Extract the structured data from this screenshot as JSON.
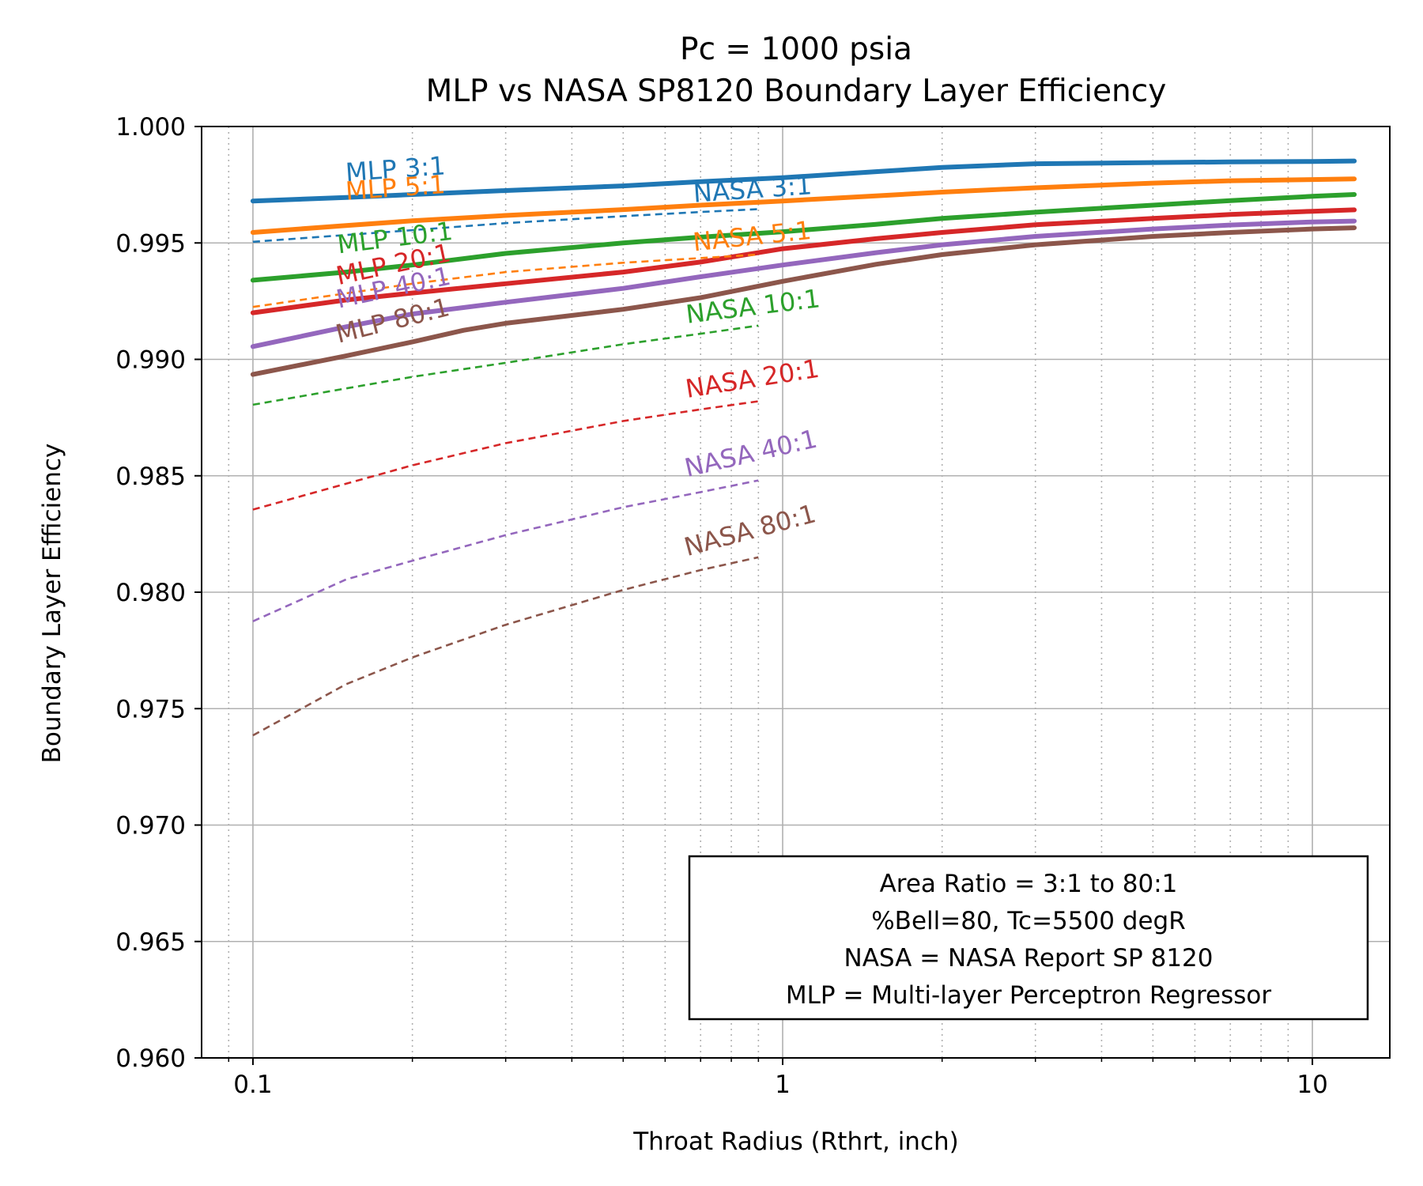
{
  "chart_data": {
    "type": "line",
    "title_lines": [
      "Pc = 1000 psia",
      "MLP vs NASA SP8120 Boundary Layer Efficiency"
    ],
    "xlabel": "Throat Radius (Rthrt, inch)",
    "ylabel": "Boundary Layer Efficiency",
    "x_scale": "log",
    "xlim": [
      0.08,
      14
    ],
    "ylim": [
      0.96,
      1.0
    ],
    "x_ticks": [
      {
        "value": 0.1,
        "label": "0.1"
      },
      {
        "value": 1,
        "label": "1"
      },
      {
        "value": 10,
        "label": "10"
      }
    ],
    "y_ticks": [
      {
        "value": 0.96,
        "label": "0.960"
      },
      {
        "value": 0.965,
        "label": "0.965"
      },
      {
        "value": 0.97,
        "label": "0.970"
      },
      {
        "value": 0.975,
        "label": "0.975"
      },
      {
        "value": 0.98,
        "label": "0.980"
      },
      {
        "value": 0.985,
        "label": "0.985"
      },
      {
        "value": 0.99,
        "label": "0.990"
      },
      {
        "value": 0.995,
        "label": "0.995"
      },
      {
        "value": 1.0,
        "label": "1.000"
      }
    ],
    "grid": {
      "major": true,
      "x_minor": "dotted"
    },
    "series": [
      {
        "name": "MLP 3:1",
        "color": "#1f77b4",
        "style": "solid",
        "label_at": [
          0.15,
          0.99765
        ],
        "label_angle": -4,
        "x": [
          0.1,
          0.15,
          0.2,
          0.3,
          0.5,
          0.7,
          1,
          1.5,
          2,
          3,
          5,
          7,
          10,
          12
        ],
        "y": [
          0.9968,
          0.99695,
          0.99708,
          0.99725,
          0.99745,
          0.99763,
          0.9978,
          0.99806,
          0.99824,
          0.9984,
          0.99845,
          0.99848,
          0.9985,
          0.99852
        ]
      },
      {
        "name": "MLP 5:1",
        "color": "#ff7f0e",
        "style": "solid",
        "label_at": [
          0.15,
          0.99685
        ],
        "label_angle": -4,
        "x": [
          0.1,
          0.15,
          0.2,
          0.3,
          0.5,
          0.7,
          1,
          1.5,
          2,
          3,
          5,
          7,
          10,
          12
        ],
        "y": [
          0.99545,
          0.99575,
          0.99595,
          0.99618,
          0.99643,
          0.99662,
          0.9968,
          0.99702,
          0.99718,
          0.99737,
          0.99757,
          0.99767,
          0.99772,
          0.99775
        ]
      },
      {
        "name": "MLP 10:1",
        "color": "#2ca02c",
        "style": "solid",
        "label_at": [
          0.145,
          0.99455
        ],
        "label_angle": -7,
        "x": [
          0.1,
          0.15,
          0.2,
          0.3,
          0.5,
          0.7,
          1,
          1.5,
          2,
          3,
          5,
          7,
          10,
          12
        ],
        "y": [
          0.9934,
          0.99375,
          0.99405,
          0.99455,
          0.995,
          0.99525,
          0.99548,
          0.9958,
          0.99605,
          0.99632,
          0.99662,
          0.99682,
          0.997,
          0.99708
        ]
      },
      {
        "name": "MLP 20:1",
        "color": "#d62728",
        "style": "solid",
        "label_at": [
          0.145,
          0.9932
        ],
        "label_angle": -12,
        "x": [
          0.1,
          0.15,
          0.2,
          0.3,
          0.5,
          0.7,
          1,
          1.5,
          2,
          3,
          5,
          7,
          10,
          12
        ],
        "y": [
          0.992,
          0.99255,
          0.99285,
          0.99325,
          0.99375,
          0.99418,
          0.99475,
          0.99518,
          0.99545,
          0.99578,
          0.99605,
          0.99622,
          0.99636,
          0.99642
        ]
      },
      {
        "name": "MLP 40:1",
        "color": "#9467bd",
        "style": "solid",
        "label_at": [
          0.145,
          0.9922
        ],
        "label_angle": -12,
        "x": [
          0.1,
          0.15,
          0.2,
          0.3,
          0.5,
          0.7,
          1,
          1.5,
          2,
          3,
          5,
          7,
          10,
          12
        ],
        "y": [
          0.99055,
          0.9914,
          0.99195,
          0.99245,
          0.99305,
          0.99355,
          0.99405,
          0.99458,
          0.99492,
          0.99528,
          0.9956,
          0.99577,
          0.9959,
          0.99594
        ]
      },
      {
        "name": "MLP 80:1",
        "color": "#8c564b",
        "style": "solid",
        "label_at": [
          0.145,
          0.9907
        ],
        "label_angle": -14,
        "x": [
          0.1,
          0.15,
          0.2,
          0.25,
          0.3,
          0.5,
          0.7,
          1,
          1.5,
          2,
          3,
          5,
          7,
          10,
          12
        ],
        "y": [
          0.98935,
          0.99015,
          0.99075,
          0.99125,
          0.99155,
          0.99215,
          0.99265,
          0.99335,
          0.99408,
          0.9945,
          0.99492,
          0.99528,
          0.99545,
          0.9956,
          0.99565
        ]
      },
      {
        "name": "NASA 3:1",
        "color": "#1f77b4",
        "style": "dashed",
        "label_at": [
          0.68,
          0.99675
        ],
        "label_angle": -4,
        "x": [
          0.1,
          0.2,
          0.3,
          0.5,
          0.7,
          0.9
        ],
        "y": [
          0.99505,
          0.99555,
          0.99585,
          0.99615,
          0.99633,
          0.99645
        ]
      },
      {
        "name": "NASA 5:1",
        "color": "#ff7f0e",
        "style": "dashed",
        "label_at": [
          0.68,
          0.99465
        ],
        "label_angle": -6,
        "x": [
          0.1,
          0.2,
          0.3,
          0.5,
          0.7,
          0.9
        ],
        "y": [
          0.99225,
          0.99325,
          0.99375,
          0.99415,
          0.99435,
          0.9945
        ]
      },
      {
        "name": "NASA 10:1",
        "color": "#2ca02c",
        "style": "dashed",
        "label_at": [
          0.66,
          0.99155
        ],
        "label_angle": -7,
        "x": [
          0.1,
          0.2,
          0.3,
          0.5,
          0.7,
          0.9
        ],
        "y": [
          0.98805,
          0.98925,
          0.98985,
          0.99065,
          0.9911,
          0.99145
        ]
      },
      {
        "name": "NASA 20:1",
        "color": "#d62728",
        "style": "dashed",
        "label_at": [
          0.66,
          0.98835
        ],
        "label_angle": -9,
        "x": [
          0.1,
          0.2,
          0.3,
          0.5,
          0.7,
          0.9
        ],
        "y": [
          0.98355,
          0.98545,
          0.9864,
          0.98735,
          0.98785,
          0.9882
        ]
      },
      {
        "name": "NASA 40:1",
        "color": "#9467bd",
        "style": "dashed",
        "label_at": [
          0.66,
          0.98495
        ],
        "label_angle": -13,
        "x": [
          0.1,
          0.15,
          0.2,
          0.3,
          0.5,
          0.7,
          0.9
        ],
        "y": [
          0.97875,
          0.98055,
          0.98135,
          0.98245,
          0.98365,
          0.9843,
          0.9848
        ]
      },
      {
        "name": "NASA 80:1",
        "color": "#8c564b",
        "style": "dashed",
        "label_at": [
          0.66,
          0.98155
        ],
        "label_angle": -15,
        "x": [
          0.1,
          0.15,
          0.2,
          0.3,
          0.5,
          0.7,
          0.9
        ],
        "y": [
          0.97385,
          0.97605,
          0.9772,
          0.9786,
          0.9801,
          0.98095,
          0.9815
        ]
      }
    ],
    "annotation_box": {
      "lines": [
        "Area Ratio = 3:1 to 80:1",
        "%Bell=80, Tc=5500 degR",
        "NASA = NASA Report SP 8120",
        "MLP = Multi-layer Perceptron Regressor"
      ],
      "placement": "lower-right"
    }
  }
}
